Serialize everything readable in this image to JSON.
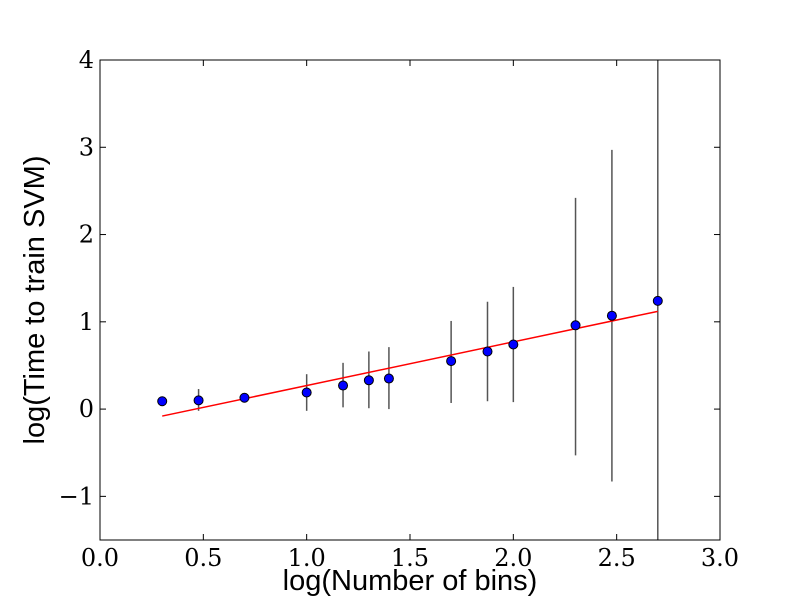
{
  "chart_data": {
    "type": "scatter",
    "title": "",
    "xlabel": "log(Number of bins)",
    "ylabel": "log(Time to train SVM)",
    "xlim": [
      0.0,
      3.0
    ],
    "ylim": [
      -1.5,
      4.0
    ],
    "x_ticks": [
      0.0,
      0.5,
      1.0,
      1.5,
      2.0,
      2.5,
      3.0
    ],
    "x_tick_labels": [
      "0.0",
      "0.5",
      "1.0",
      "1.5",
      "2.0",
      "2.5",
      "3.0"
    ],
    "y_ticks": [
      -1,
      0,
      1,
      2,
      3,
      4
    ],
    "y_tick_labels": [
      "−1",
      "0",
      "1",
      "2",
      "3",
      "4"
    ],
    "grid": false,
    "series": [
      {
        "type": "scatter",
        "color": "#0000ff",
        "points": [
          {
            "x": 0.301,
            "y": 0.09,
            "err_low": 0.07,
            "err_high": 0.11
          },
          {
            "x": 0.477,
            "y": 0.1,
            "err_low": -0.02,
            "err_high": 0.23
          },
          {
            "x": 0.699,
            "y": 0.13,
            "err_low": 0.1,
            "err_high": 0.16
          },
          {
            "x": 1.0,
            "y": 0.19,
            "err_low": -0.02,
            "err_high": 0.4
          },
          {
            "x": 1.176,
            "y": 0.27,
            "err_low": 0.02,
            "err_high": 0.53
          },
          {
            "x": 1.301,
            "y": 0.33,
            "err_low": 0.01,
            "err_high": 0.66
          },
          {
            "x": 1.398,
            "y": 0.35,
            "err_low": 0.0,
            "err_high": 0.71
          },
          {
            "x": 1.699,
            "y": 0.55,
            "err_low": 0.07,
            "err_high": 1.01
          },
          {
            "x": 1.875,
            "y": 0.66,
            "err_low": 0.09,
            "err_high": 1.23
          },
          {
            "x": 2.0,
            "y": 0.74,
            "err_low": 0.08,
            "err_high": 1.4
          },
          {
            "x": 2.301,
            "y": 0.96,
            "err_low": -0.53,
            "err_high": 2.42
          },
          {
            "x": 2.477,
            "y": 1.07,
            "err_low": -0.83,
            "err_high": 2.97
          },
          {
            "x": 2.699,
            "y": 1.24,
            "err_low": -1.5,
            "err_high": 4.0
          }
        ]
      },
      {
        "type": "line",
        "color": "#ff0000",
        "x": [
          0.301,
          2.699
        ],
        "y": [
          -0.08,
          1.12
        ]
      }
    ]
  }
}
